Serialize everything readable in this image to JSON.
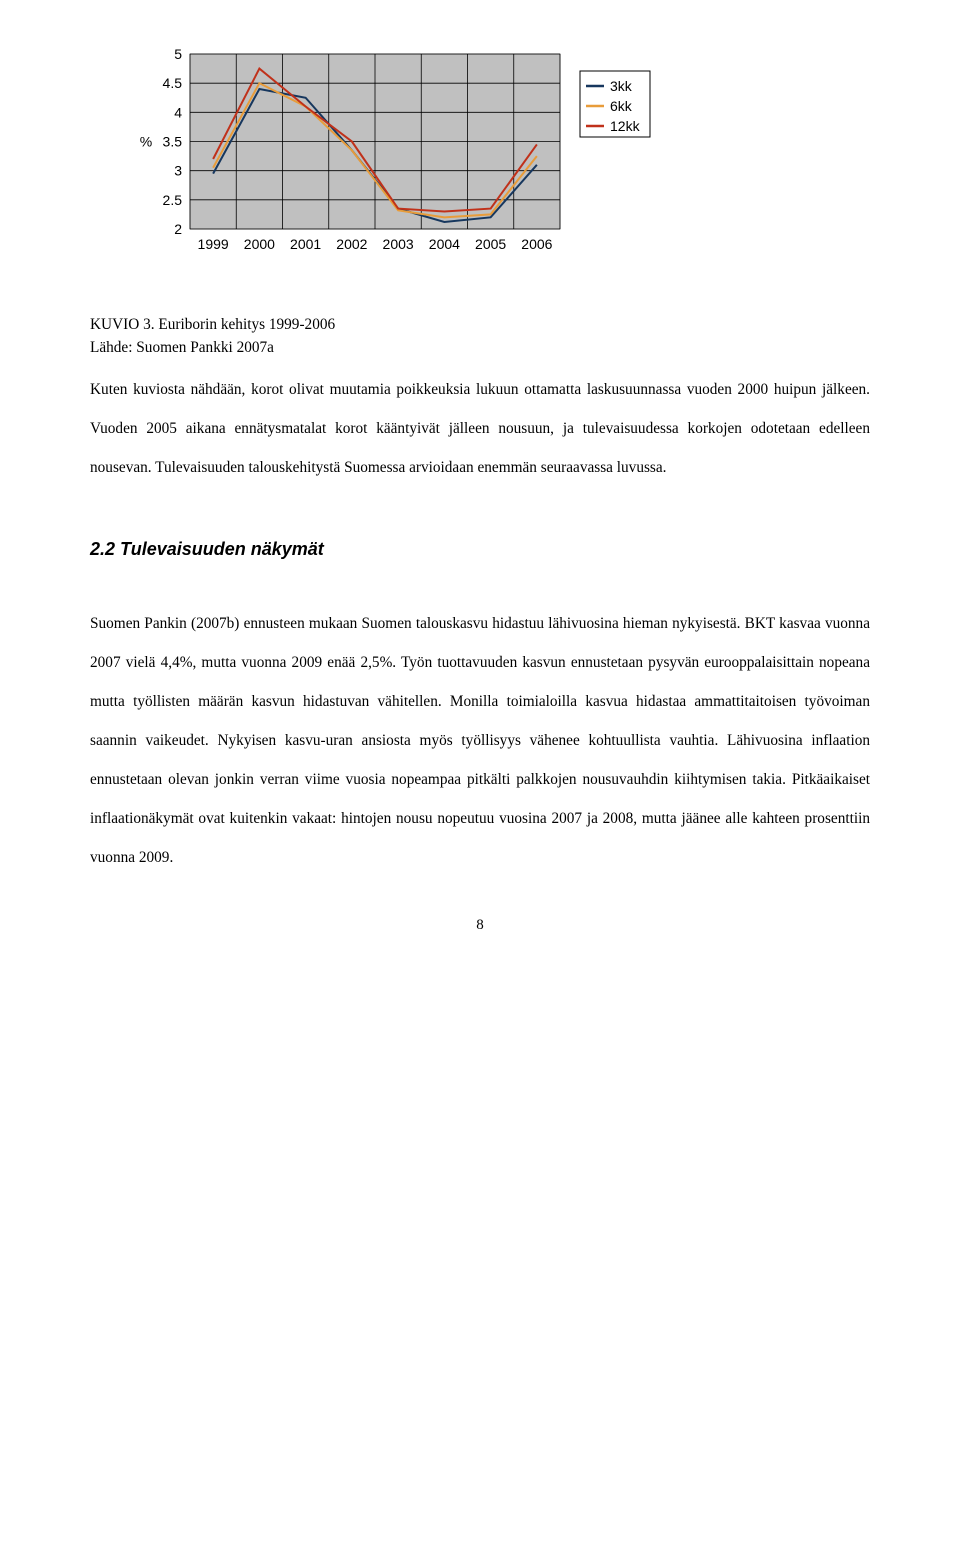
{
  "chart": {
    "type": "line",
    "plot_bg": "#c0c0c0",
    "border_color": "#808080",
    "legend_border": "#000000",
    "legend_bg": "#ffffff",
    "grid_color": "#000000",
    "axis_font_size": 14,
    "y_axis": {
      "label": "%",
      "min": 2,
      "max": 5,
      "step": 0.5,
      "ticks": [
        "5",
        "4.5",
        "4",
        "3.5",
        "3",
        "2.5",
        "2"
      ]
    },
    "x_axis": {
      "categories": [
        "1999",
        "2000",
        "2001",
        "2002",
        "2003",
        "2004",
        "2005",
        "2006"
      ]
    },
    "series": [
      {
        "name": "3kk",
        "color": "#17375e",
        "values": [
          2.95,
          4.4,
          4.25,
          3.35,
          2.35,
          2.12,
          2.2,
          3.1
        ]
      },
      {
        "name": "6kk",
        "color": "#e89c3a",
        "values": [
          3.05,
          4.5,
          4.1,
          3.35,
          2.32,
          2.2,
          2.25,
          3.25
        ]
      },
      {
        "name": "12kk",
        "color": "#c0311a",
        "values": [
          3.2,
          4.75,
          4.1,
          3.5,
          2.35,
          2.3,
          2.35,
          3.45
        ]
      }
    ]
  },
  "caption": {
    "line1": "KUVIO 3. Euriborin kehitys 1999-2006",
    "line2": "Lähde: Suomen Pankki 2007a"
  },
  "paragraph1": "Kuten kuviosta nähdään, korot olivat muutamia poikkeuksia lukuun ottamatta laskusuunnassa vuoden 2000 huipun jälkeen. Vuoden 2005 aikana ennätysmatalat korot kääntyivät jälleen nousuun, ja tulevaisuudessa korkojen odotetaan edelleen nousevan. Tulevaisuuden talouskehitystä Suomessa arvioidaan enemmän seuraavassa luvussa.",
  "section_heading": "2.2   Tulevaisuuden näkymät",
  "paragraph2": "Suomen Pankin (2007b) ennusteen mukaan Suomen talouskasvu hidastuu lähivuosina hieman nykyisestä. BKT kasvaa vuonna 2007 vielä 4,4%, mutta vuonna 2009 enää 2,5%. Työn tuottavuuden kasvun ennustetaan pysyvän eurooppalaisittain nopeana mutta työllisten määrän kasvun hidastuvan vähitellen. Monilla toimialoilla kasvua hidastaa ammattitaitoisen työvoiman saannin vaikeudet. Nykyisen kasvu-uran ansiosta myös työllisyys vähenee kohtuullista vauhtia. Lähivuosina inflaation ennustetaan olevan jonkin verran viime vuosia nopeampaa pitkälti palkkojen nousuvauhdin kiihtymisen takia. Pitkäaikaiset inflaationäkymät ovat kuitenkin vakaat: hintojen nousu nopeutuu vuosina 2007 ja 2008, mutta jäänee alle kahteen prosenttiin vuonna 2009.",
  "page_number": "8"
}
